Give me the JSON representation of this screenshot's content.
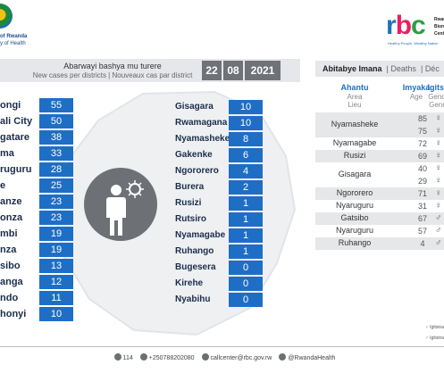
{
  "header": {
    "seal_line1": "of Rwanda",
    "seal_line2": "y of Health",
    "rbc_letters": [
      "r",
      "b",
      "c"
    ],
    "rbc_side": [
      "Rwanda",
      "Biome",
      "Centre"
    ],
    "rbc_tagline": "Healthy People, Wealthy Nation"
  },
  "left_panel": {
    "title": "Abarwayi bashya mu turere",
    "subtitle": "New cases per districts  |  Nouveaux cas par district",
    "date": {
      "day": "22",
      "month": "08",
      "year": "2021"
    },
    "left_list": [
      {
        "name": "ongi",
        "value": "55"
      },
      {
        "name": "ali City",
        "value": "50"
      },
      {
        "name": "gatare",
        "value": "38"
      },
      {
        "name": "ma",
        "value": "33"
      },
      {
        "name": "ruguru",
        "value": "28"
      },
      {
        "name": "e",
        "value": "25"
      },
      {
        "name": "anze",
        "value": "23"
      },
      {
        "name": "onza",
        "value": "23"
      },
      {
        "name": "mbi",
        "value": "19"
      },
      {
        "name": "nza",
        "value": "19"
      },
      {
        "name": "sibo",
        "value": "13"
      },
      {
        "name": "anga",
        "value": "12"
      },
      {
        "name": "ndo",
        "value": "11"
      },
      {
        "name": "honyi",
        "value": "10"
      }
    ],
    "right_list": [
      {
        "name": "Gisagara",
        "value": "10"
      },
      {
        "name": "Rwamagana",
        "value": "10"
      },
      {
        "name": "Nyamasheke",
        "value": "8"
      },
      {
        "name": "Gakenke",
        "value": "6"
      },
      {
        "name": "Ngororero",
        "value": "4"
      },
      {
        "name": "Burera",
        "value": "2"
      },
      {
        "name": "Rusizi",
        "value": "1"
      },
      {
        "name": "Rutsiro",
        "value": "1"
      },
      {
        "name": "Nyamagabe",
        "value": "1"
      },
      {
        "name": "Ruhango",
        "value": "1"
      },
      {
        "name": "Bugesera",
        "value": "0"
      },
      {
        "name": "Kirehe",
        "value": "0"
      },
      {
        "name": "Nyabihu",
        "value": "0"
      }
    ]
  },
  "right_panel": {
    "tabs": {
      "active": "Abitabye Imana",
      "sep": "|",
      "t2": "Deaths",
      "t3": "Déc"
    },
    "columns": {
      "district": {
        "h1": "Ahantu",
        "h2": "Area",
        "h3": "Lieu"
      },
      "age": {
        "h1": "Imyaka",
        "h2": "Age"
      },
      "gender": {
        "h1": "Igitsi",
        "h2": "Gend",
        "h3": "Genr"
      }
    },
    "rows": [
      {
        "district": "Nyamasheke",
        "ages": [
          "85",
          "75"
        ],
        "sexes": [
          "♀",
          "♀"
        ]
      },
      {
        "district": "Nyamagabe",
        "ages": [
          "72"
        ],
        "sexes": [
          "♀"
        ]
      },
      {
        "district": "Rusizi",
        "ages": [
          "69"
        ],
        "sexes": [
          "♀"
        ]
      },
      {
        "district": "Gisagara",
        "ages": [
          "40",
          "29"
        ],
        "sexes": [
          "♀",
          "♀"
        ]
      },
      {
        "district": "Ngororero",
        "ages": [
          "71"
        ],
        "sexes": [
          "♀"
        ]
      },
      {
        "district": "Nyaruguru",
        "ages": [
          "31"
        ],
        "sexes": [
          "♀"
        ]
      },
      {
        "district": "Gatsibo",
        "ages": [
          "67"
        ],
        "sexes": [
          "♂"
        ]
      },
      {
        "district": "Nyaruguru",
        "ages": [
          "57"
        ],
        "sexes": [
          "♂"
        ]
      },
      {
        "district": "Ruhango",
        "ages": [
          "4"
        ],
        "sexes": [
          "♂"
        ]
      }
    ],
    "legend": {
      "female": "Igitsina",
      "male": "Igitsina"
    }
  },
  "footer": {
    "phone_short": "114",
    "phone": "+250788202080",
    "email": "callcenter@rbc.gov.rw",
    "social": "@RwandaHealth"
  },
  "colors": {
    "accent": "#1f6ec6",
    "dark": "#6d7176",
    "panel": "#e5e7ea"
  }
}
